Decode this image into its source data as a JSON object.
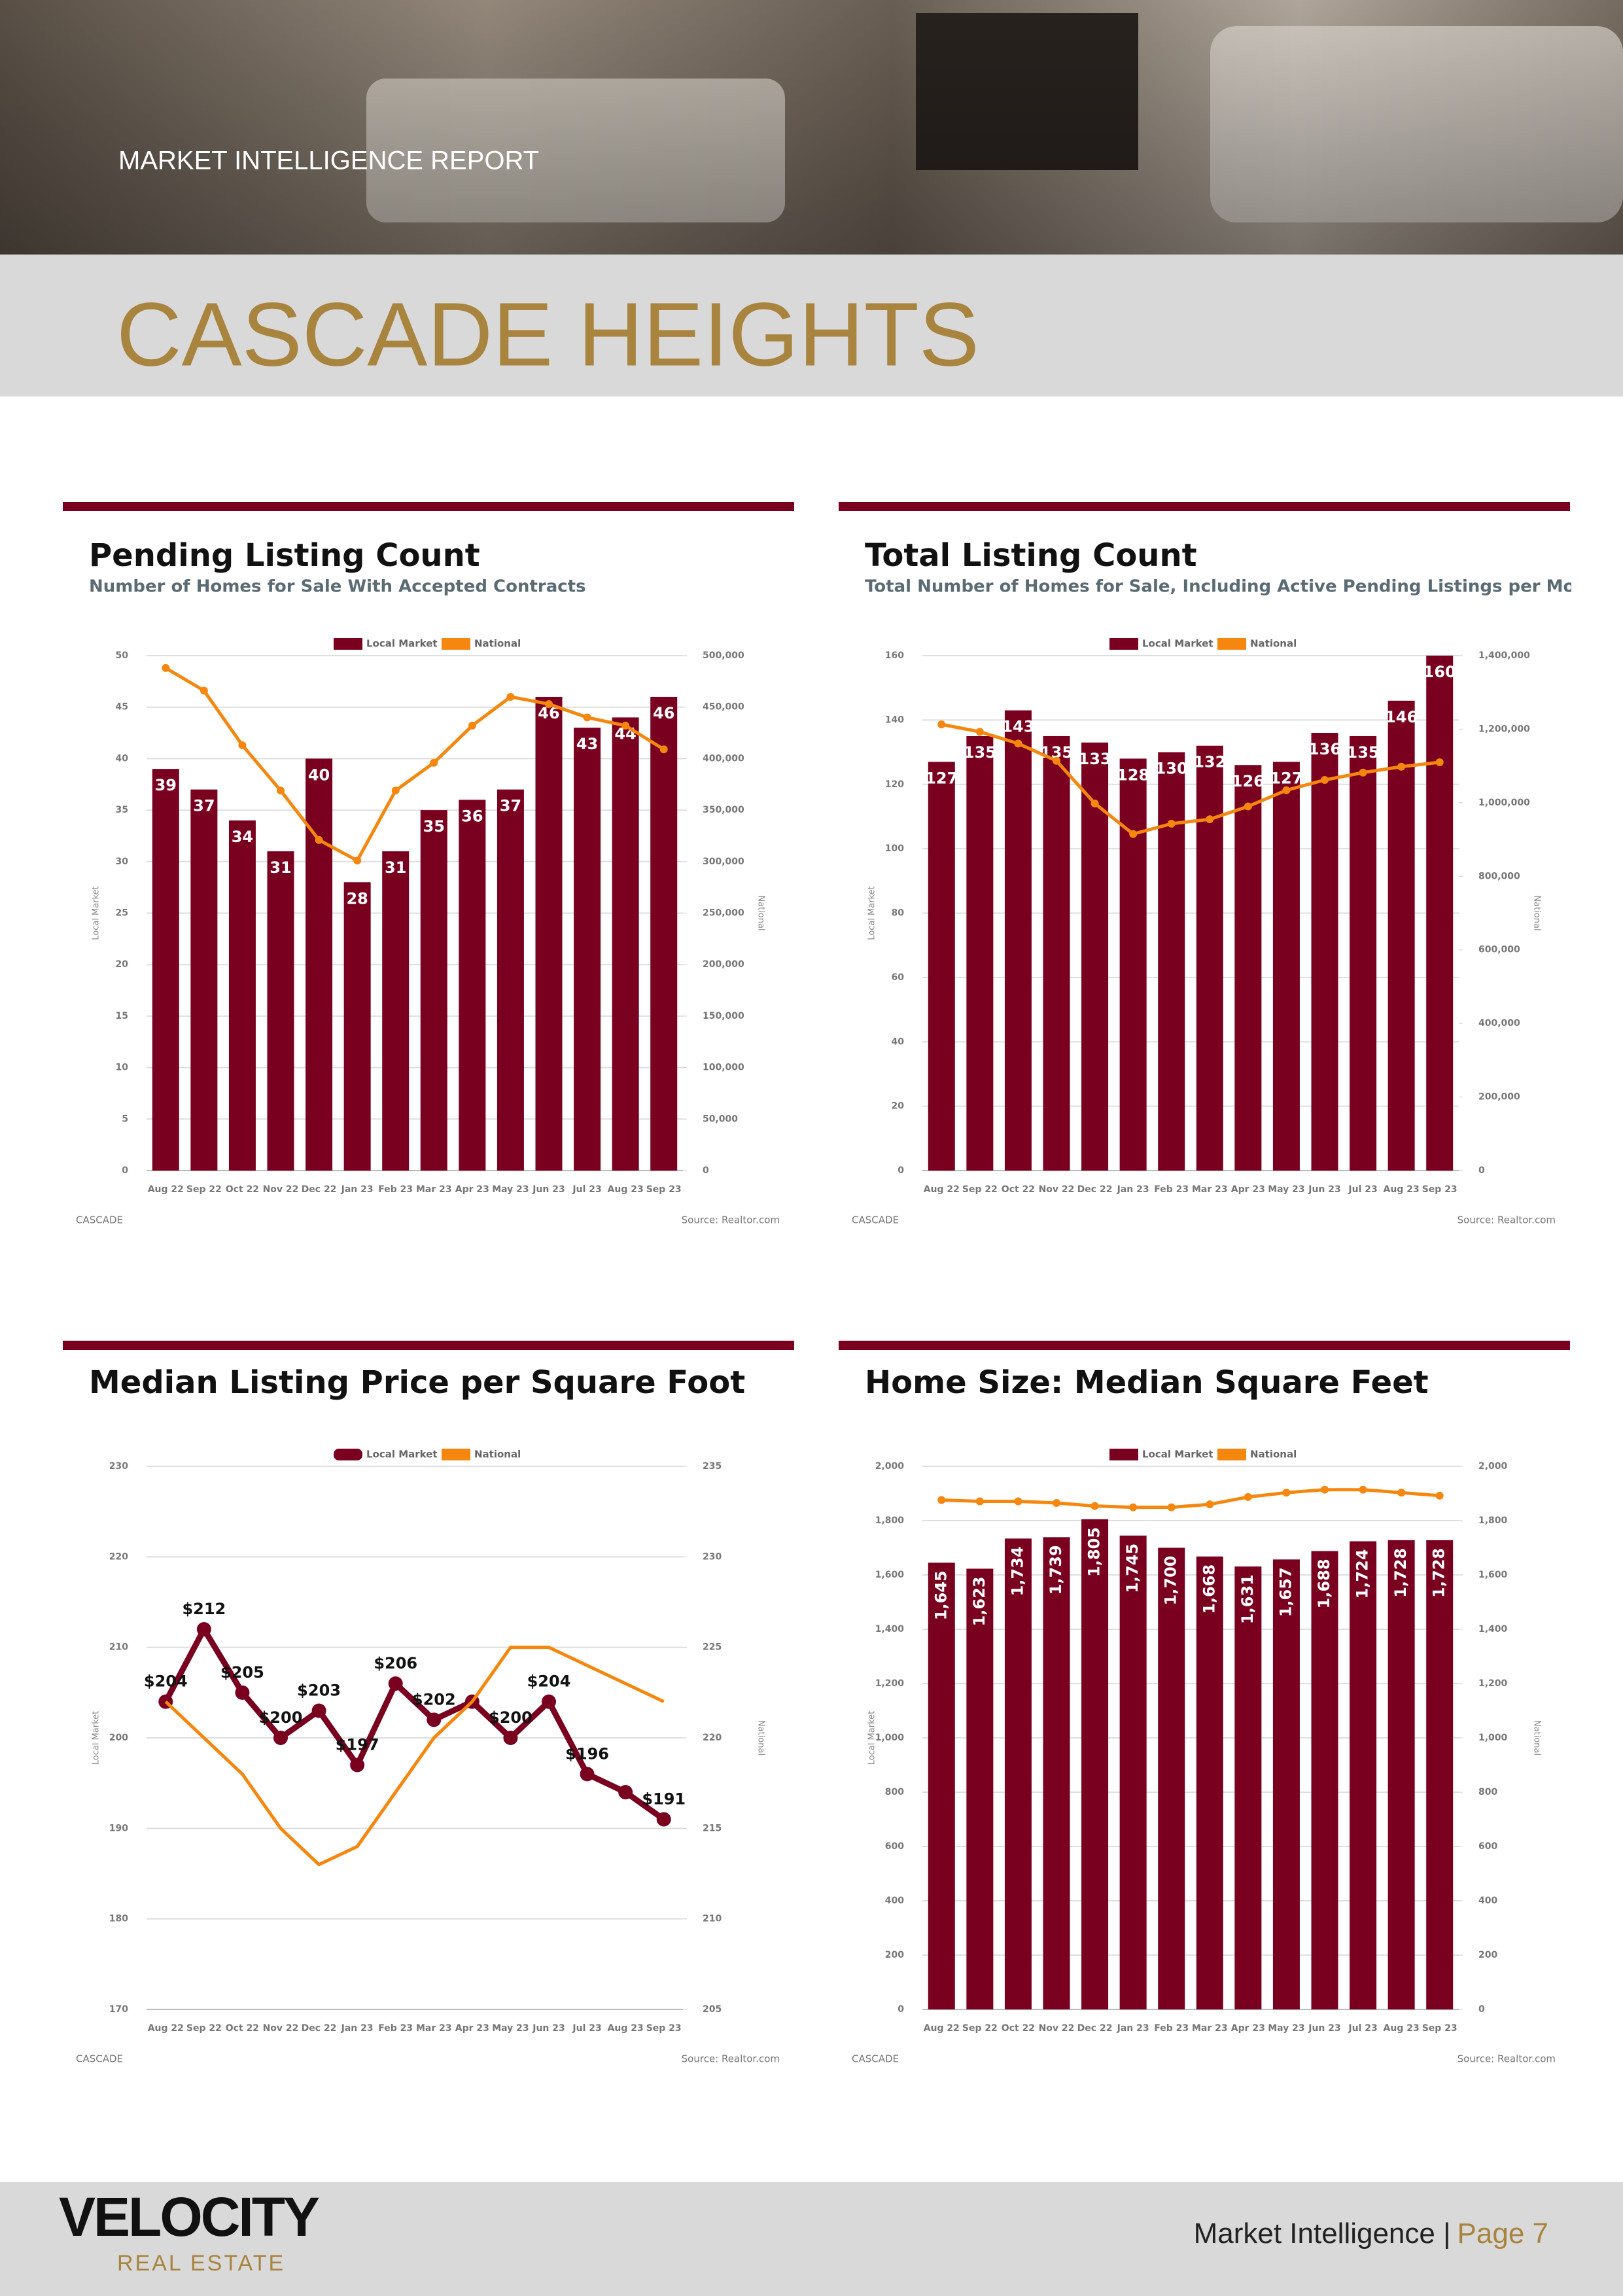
{
  "header": {
    "kicker": "MARKET INTELLIGENCE REPORT",
    "title": "CASCADE HEIGHTS"
  },
  "footer": {
    "brand": "VELOCITY",
    "brand_sub": "REAL ESTATE",
    "section": "Market Intelligence |",
    "page": "Page 7"
  },
  "chart_data": [
    {
      "type": "bar",
      "title": "Pending Listing Count",
      "subtitle": "Number of Homes for Sale With Accepted Contracts",
      "categories": [
        "Aug 22",
        "Sep 22",
        "Oct 22",
        "Nov 22",
        "Dec 22",
        "Jan 23",
        "Feb 23",
        "Mar 23",
        "Apr 23",
        "May 23",
        "Jun 23",
        "Jul 23",
        "Aug 23",
        "Sep 23"
      ],
      "series": [
        {
          "name": "Local Market",
          "type": "bar",
          "color": "#7a0020",
          "values": [
            39,
            37,
            34,
            31,
            40,
            28,
            31,
            35,
            36,
            37,
            46,
            43,
            44,
            46
          ]
        },
        {
          "name": "National",
          "type": "line",
          "axis": "y2",
          "color": "#f5870f",
          "values": [
            488000,
            466000,
            413000,
            369000,
            321000,
            301000,
            369000,
            396000,
            432000,
            460000,
            453000,
            440000,
            432000,
            409000
          ]
        }
      ],
      "ylim": [
        0,
        50
      ],
      "yticks": [
        0,
        5,
        10,
        15,
        20,
        25,
        30,
        35,
        40,
        45,
        50
      ],
      "y2lim": [
        0,
        500000
      ],
      "y2ticks": [
        0,
        {
          "value": 50000,
          "label": "50,000"
        },
        {
          "value": 100000,
          "label": "100,000"
        },
        {
          "value": 150000,
          "label": "150,000"
        },
        {
          "value": 200000,
          "label": "200,000"
        },
        {
          "value": 250000,
          "label": "250,000"
        },
        {
          "value": 300000,
          "label": "300,000"
        },
        {
          "value": 350000,
          "label": "350,000"
        },
        {
          "value": 400000,
          "label": "400,000"
        },
        {
          "value": 450000,
          "label": "450,000"
        },
        {
          "value": 500000,
          "label": "500,000"
        }
      ],
      "ylabel": "Local Market",
      "y2label": "National",
      "grid": true,
      "note": "CASCADE",
      "source": "Source: Realtor.com"
    },
    {
      "type": "bar",
      "title": "Total Listing Count",
      "subtitle": "Total Number of Homes for Sale, Including Active Pending Listings per Month",
      "categories": [
        "Aug 22",
        "Sep 22",
        "Oct 22",
        "Nov 22",
        "Dec 22",
        "Jan 23",
        "Feb 23",
        "Mar 23",
        "Apr 23",
        "May 23",
        "Jun 23",
        "Jul 23",
        "Aug 23",
        "Sep 23"
      ],
      "series": [
        {
          "name": "Local Market",
          "type": "bar",
          "color": "#7a0020",
          "values": [
            127,
            135,
            143,
            135,
            133,
            128,
            130,
            132,
            126,
            127,
            136,
            135,
            146,
            160
          ]
        },
        {
          "name": "National",
          "type": "line",
          "axis": "y2",
          "color": "#f5870f",
          "values": [
            1213000,
            1193000,
            1161000,
            1114000,
            998000,
            915000,
            943000,
            955000,
            990000,
            1034000,
            1062000,
            1082000,
            1098000,
            1110000
          ]
        }
      ],
      "ylim": [
        0,
        160
      ],
      "yticks": [
        0,
        20,
        40,
        60,
        80,
        100,
        120,
        140,
        160
      ],
      "y2lim": [
        0,
        1400000
      ],
      "y2ticks": [
        0,
        {
          "value": 200000,
          "label": "200,000"
        },
        {
          "value": 400000,
          "label": "400,000"
        },
        {
          "value": 600000,
          "label": "600,000"
        },
        {
          "value": 800000,
          "label": "800,000"
        },
        {
          "value": 1000000,
          "label": "1,000,000"
        },
        {
          "value": 1200000,
          "label": "1,200,000"
        },
        {
          "value": 1400000,
          "label": "1,400,000"
        }
      ],
      "ylabel": "Local Market",
      "y2label": "National",
      "grid": true,
      "note": "CASCADE",
      "source": "Source: Realtor.com"
    },
    {
      "type": "line",
      "title": "Median Listing Price per Square Foot",
      "categories": [
        "Aug 22",
        "Sep 22",
        "Oct 22",
        "Nov 22",
        "Dec 22",
        "Jan 23",
        "Feb 23",
        "Mar 23",
        "Apr 23",
        "May 23",
        "Jun 23",
        "Jul 23",
        "Aug 23",
        "Sep 23"
      ],
      "series": [
        {
          "name": "Local Market",
          "type": "line",
          "color": "#7a0020",
          "values": [
            204,
            212,
            205,
            200,
            203,
            197,
            206,
            202,
            204,
            200,
            204,
            196,
            194,
            191
          ],
          "value_labels": [
            "$204",
            "$212",
            "$205",
            "$200",
            "$203",
            "$197",
            "$206",
            "$202",
            null,
            "$200",
            "$204",
            "$196",
            null,
            "$191"
          ]
        },
        {
          "name": "National",
          "type": "line",
          "axis": "y2",
          "color": "#f5870f",
          "values": [
            222,
            220,
            218,
            215,
            213,
            214,
            217,
            220,
            222,
            225,
            225,
            224,
            223,
            222
          ]
        }
      ],
      "ylim": [
        170,
        230
      ],
      "yticks": [
        170,
        180,
        190,
        200,
        210,
        220,
        230
      ],
      "y2lim": [
        205,
        235
      ],
      "y2ticks": [
        205,
        210,
        215,
        220,
        225,
        230,
        235
      ],
      "ylabel": "Local Market",
      "y2label": "National",
      "grid": true,
      "note": "CASCADE",
      "source": "Source: Realtor.com"
    },
    {
      "type": "bar",
      "title": "Home Size: Median Square Feet",
      "categories": [
        "Aug 22",
        "Sep 22",
        "Oct 22",
        "Nov 22",
        "Dec 22",
        "Jan 23",
        "Feb 23",
        "Mar 23",
        "Apr 23",
        "May 23",
        "Jun 23",
        "Jul 23",
        "Aug 23",
        "Sep 23"
      ],
      "series": [
        {
          "name": "Local Market",
          "type": "bar",
          "color": "#7a0020",
          "values": [
            1645,
            1623,
            1734,
            1739,
            1805,
            1745,
            1700,
            1668,
            1631,
            1657,
            1688,
            1724,
            1728,
            1728
          ],
          "value_labels": [
            "1,645",
            "1,623",
            "1,734",
            "1,739",
            "1,805",
            "1,745",
            "1,700",
            "1,668",
            "1,631",
            "1,657",
            "1,688",
            "1,724",
            "1,728",
            "1,728"
          ]
        },
        {
          "name": "National",
          "type": "line",
          "axis": "y2",
          "color": "#f5870f",
          "values": [
            1876,
            1871,
            1871,
            1865,
            1854,
            1849,
            1849,
            1860,
            1887,
            1903,
            1914,
            1914,
            1903,
            1892
          ]
        }
      ],
      "ylim": [
        0,
        2000
      ],
      "yticks": [
        0,
        200,
        400,
        600,
        800,
        {
          "value": 1000,
          "label": "1,000"
        },
        {
          "value": 1200,
          "label": "1,200"
        },
        {
          "value": 1400,
          "label": "1,400"
        },
        {
          "value": 1600,
          "label": "1,600"
        },
        {
          "value": 1800,
          "label": "1,800"
        },
        {
          "value": 2000,
          "label": "2,000"
        }
      ],
      "y2lim": [
        0,
        2000
      ],
      "y2ticks": [
        0,
        200,
        400,
        600,
        800,
        {
          "value": 1000,
          "label": "1,000"
        },
        {
          "value": 1200,
          "label": "1,200"
        },
        {
          "value": 1400,
          "label": "1,400"
        },
        {
          "value": 1600,
          "label": "1,600"
        },
        {
          "value": 1800,
          "label": "1,800"
        },
        {
          "value": 2000,
          "label": "2,000"
        }
      ],
      "ylabel": "Local Market",
      "y2label": "National",
      "grid": true,
      "note": "CASCADE",
      "source": "Source: Realtor.com"
    }
  ]
}
